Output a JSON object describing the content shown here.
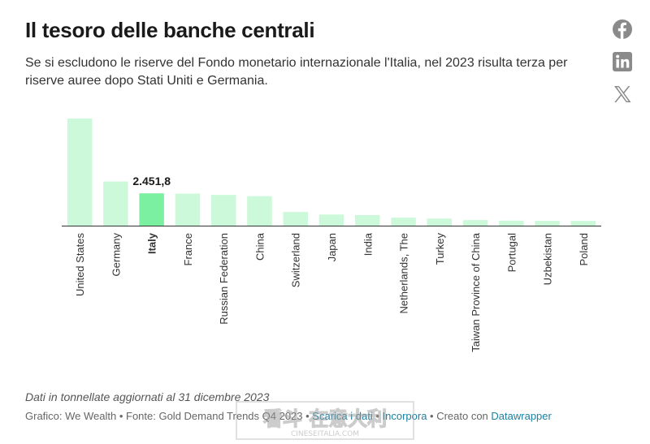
{
  "header": {
    "title": "Il tesoro delle banche centrali",
    "subtitle": "Se si escludono le riserve del Fondo monetario internazionale l'Italia, nel 2023 risulta terza per riserve auree dopo Stati Uniti e Germania."
  },
  "share_icons": [
    "facebook-icon",
    "linkedin-icon",
    "x-twitter-icon"
  ],
  "chart_data": {
    "type": "bar",
    "title": "",
    "xlabel": "",
    "ylabel": "",
    "categories": [
      "United States",
      "Germany",
      "Italy",
      "France",
      "Russian Federation",
      "China",
      "Switzerland",
      "Japan",
      "India",
      "Netherlands, The",
      "Turkey",
      "Taiwan Province of China",
      "Portugal",
      "Uzbekistan",
      "Poland"
    ],
    "values": [
      8133.5,
      3352.6,
      2451.8,
      2436.9,
      2332.7,
      2235.4,
      1040.0,
      846.0,
      803.6,
      612.5,
      540.0,
      422.4,
      382.6,
      365.0,
      358.7
    ],
    "ylim": [
      0,
      8133.5
    ],
    "highlight_category": "Italy",
    "highlight_label": "2.451,8",
    "bar_color": "#ccf9da",
    "highlight_color": "#7bf0a0",
    "baseline_color": "#333333",
    "grid": false
  },
  "notes": "Dati in tonnellate aggiornati al 31 dicembre 2023",
  "footer": {
    "prefix": "Grafico: We Wealth • Fonte: Gold Demand Trends Q4 2023 • ",
    "get_data_label": "Scarica i dati",
    "embed_label": "Incorpora",
    "created_with": " • Creato con ",
    "datawrapper_label": "Datawrapper"
  },
  "watermark": {
    "text": "看斗 在意大利",
    "subtext": "CINESEITALIA.COM"
  }
}
